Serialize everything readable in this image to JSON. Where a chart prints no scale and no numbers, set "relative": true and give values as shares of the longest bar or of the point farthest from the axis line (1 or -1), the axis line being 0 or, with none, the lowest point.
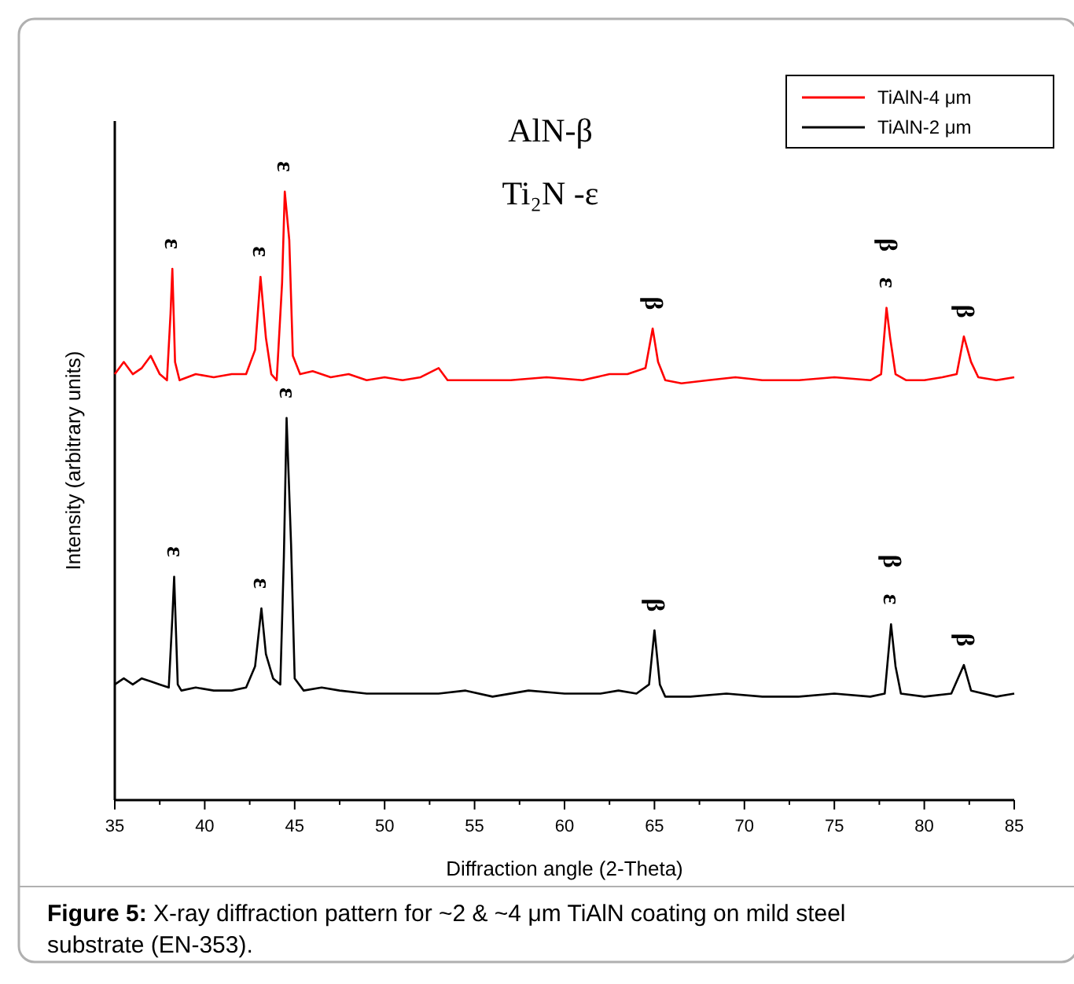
{
  "chart_data": {
    "type": "line",
    "relative": true,
    "xlabel": "Diffraction angle (2-Theta)",
    "ylabel": "Intensity (arbitrary units)",
    "xlim": [
      35,
      85
    ],
    "xticks": [
      35,
      40,
      45,
      50,
      55,
      60,
      65,
      70,
      75,
      80,
      85
    ],
    "legend": "top right",
    "grid": false,
    "series": [
      {
        "name": "TiAlN-4 μm",
        "color": "#ff0000",
        "x": [
          35,
          35.5,
          36,
          36.5,
          37,
          37.5,
          37.9,
          38.1,
          38.2,
          38.35,
          38.6,
          39.5,
          40.5,
          41.5,
          42.3,
          42.8,
          43.1,
          43.4,
          43.7,
          44.0,
          44.3,
          44.45,
          44.7,
          44.9,
          45.3,
          46,
          47,
          48,
          49,
          50,
          51,
          52,
          53,
          53.5,
          55,
          57,
          59,
          61,
          62.5,
          63.5,
          64.5,
          64.9,
          65.2,
          65.6,
          66.5,
          68,
          69.5,
          71,
          73,
          75,
          77,
          77.6,
          77.9,
          78.1,
          78.4,
          79,
          80,
          81,
          81.8,
          82.2,
          82.6,
          83,
          84,
          85
        ],
        "values": [
          0.7,
          0.72,
          0.7,
          0.71,
          0.73,
          0.7,
          0.69,
          0.8,
          0.873,
          0.72,
          0.69,
          0.7,
          0.695,
          0.7,
          0.7,
          0.74,
          0.86,
          0.76,
          0.7,
          0.69,
          0.85,
          1,
          0.92,
          0.73,
          0.7,
          0.705,
          0.695,
          0.7,
          0.69,
          0.695,
          0.69,
          0.695,
          0.71,
          0.69,
          0.69,
          0.69,
          0.695,
          0.69,
          0.7,
          0.7,
          0.71,
          0.775,
          0.72,
          0.69,
          0.685,
          0.69,
          0.695,
          0.69,
          0.69,
          0.695,
          0.69,
          0.7,
          0.809,
          0.76,
          0.7,
          0.69,
          0.69,
          0.695,
          0.7,
          0.762,
          0.72,
          0.695,
          0.69,
          0.695
        ]
      },
      {
        "name": "TiAlN-2 μm",
        "color": "#000000",
        "x": [
          35,
          35.5,
          36,
          36.5,
          37,
          37.5,
          38.0,
          38.2,
          38.3,
          38.5,
          38.7,
          39.5,
          40.5,
          41.5,
          42.3,
          42.8,
          43.15,
          43.4,
          43.8,
          44.2,
          44.4,
          44.55,
          44.8,
          45.0,
          45.5,
          46.5,
          47.5,
          49,
          51,
          53,
          54.5,
          56,
          58,
          60,
          62,
          63,
          64,
          64.7,
          65,
          65.3,
          65.6,
          67,
          69,
          71,
          73,
          75,
          77,
          77.8,
          78.15,
          78.4,
          78.7,
          80,
          81.5,
          82.2,
          82.6,
          84,
          85
        ],
        "values": [
          0.19,
          0.2,
          0.19,
          0.2,
          0.195,
          0.19,
          0.185,
          0.3,
          0.367,
          0.19,
          0.18,
          0.185,
          0.18,
          0.18,
          0.185,
          0.22,
          0.315,
          0.24,
          0.2,
          0.19,
          0.4,
          0.628,
          0.42,
          0.2,
          0.18,
          0.185,
          0.18,
          0.175,
          0.175,
          0.175,
          0.18,
          0.17,
          0.18,
          0.175,
          0.175,
          0.18,
          0.175,
          0.19,
          0.279,
          0.19,
          0.17,
          0.17,
          0.175,
          0.17,
          0.17,
          0.175,
          0.17,
          0.175,
          0.289,
          0.22,
          0.175,
          0.17,
          0.175,
          0.222,
          0.18,
          0.17,
          0.175
        ]
      }
    ],
    "annotations": [
      "AlN-β",
      "Ti₂N -ε",
      {
        "text": "ε",
        "x": 38.2,
        "y": 0.873
      },
      {
        "text": "ε",
        "x": 43.1,
        "y": 0.86
      },
      {
        "text": "ε",
        "x": 44.45,
        "y": 1
      },
      {
        "text": "β",
        "x": 64.9,
        "y": 0.775
      },
      {
        "text": "ε",
        "x": 77.9,
        "y": 0.809
      },
      {
        "text": "β",
        "x": 77.9,
        "y": 0.809
      },
      {
        "text": "β",
        "x": 82.2,
        "y": 0.762
      },
      {
        "text": "ε",
        "x": 38.3,
        "y": 0.367
      },
      {
        "text": "ε",
        "x": 43.15,
        "y": 0.315
      },
      {
        "text": "ε",
        "x": 44.55,
        "y": 0.628
      },
      {
        "text": "β",
        "x": 65,
        "y": 0.279
      },
      {
        "text": "ε",
        "x": 78.15,
        "y": 0.289
      },
      {
        "text": "β",
        "x": 78.15,
        "y": 0.289
      },
      {
        "text": "β",
        "x": 82.2,
        "y": 0.222
      },
      "Figure 5: X-ray diffraction pattern for ~2 & ~4 μm TiAlN coating on mild steel substrate (EN-353)."
    ]
  }
}
